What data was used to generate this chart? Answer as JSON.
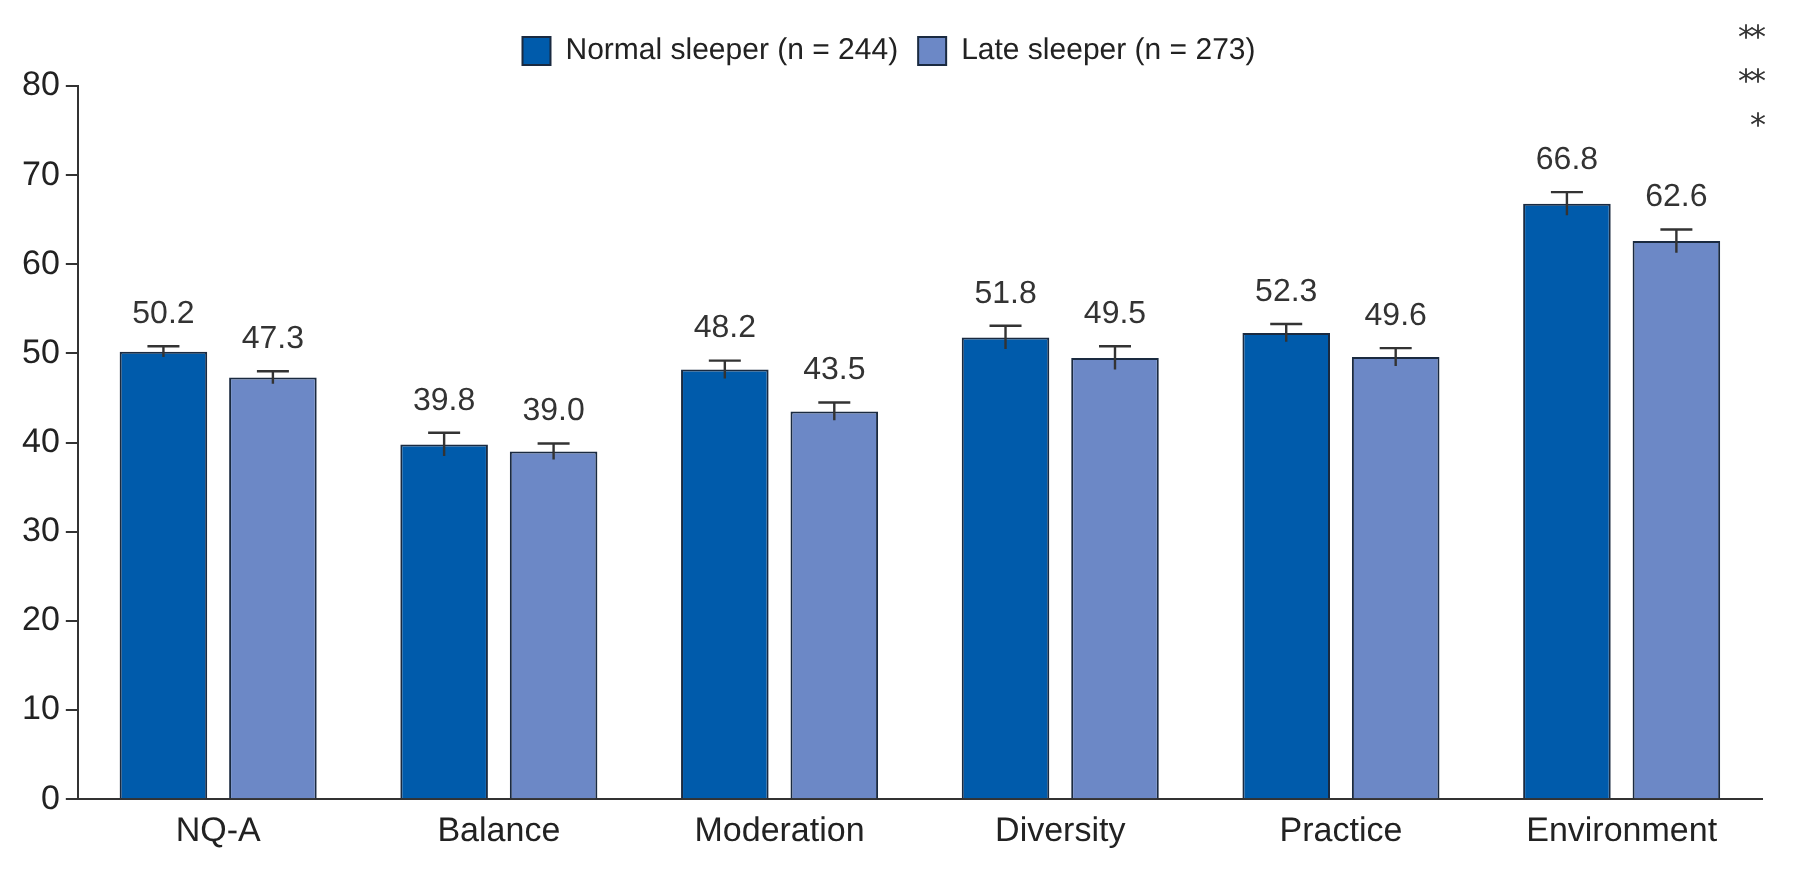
{
  "chart_data": {
    "type": "bar",
    "categories": [
      "NQ-A",
      "Balance",
      "Moderation",
      "Diversity",
      "Practice",
      "Environment"
    ],
    "series": [
      {
        "name": "Normal sleeper (n = 244)",
        "color": "#005bab",
        "values": [
          50.2,
          39.8,
          48.2,
          51.8,
          52.3,
          66.8
        ],
        "errors": [
          0.6,
          1.3,
          1.0,
          1.3,
          1.0,
          1.3
        ],
        "value_labels": [
          "50.2",
          "39.8",
          "48.2",
          "51.8",
          "52.3",
          "66.8"
        ]
      },
      {
        "name": "Late sleeper (n = 273)",
        "color": "#6c88c6",
        "values": [
          47.3,
          39.0,
          43.5,
          49.5,
          49.6,
          62.6
        ],
        "errors": [
          0.7,
          0.9,
          1.0,
          1.3,
          1.0,
          1.3
        ],
        "value_labels": [
          "47.3",
          "39.0",
          "43.5",
          "49.5",
          "49.6",
          "62.6"
        ]
      }
    ],
    "ylim": [
      0,
      80
    ],
    "yticks": [
      0,
      10,
      20,
      30,
      40,
      50,
      60,
      70,
      80
    ],
    "grid": false,
    "legend": "top",
    "annotations": [
      "**",
      "**",
      "*"
    ]
  }
}
